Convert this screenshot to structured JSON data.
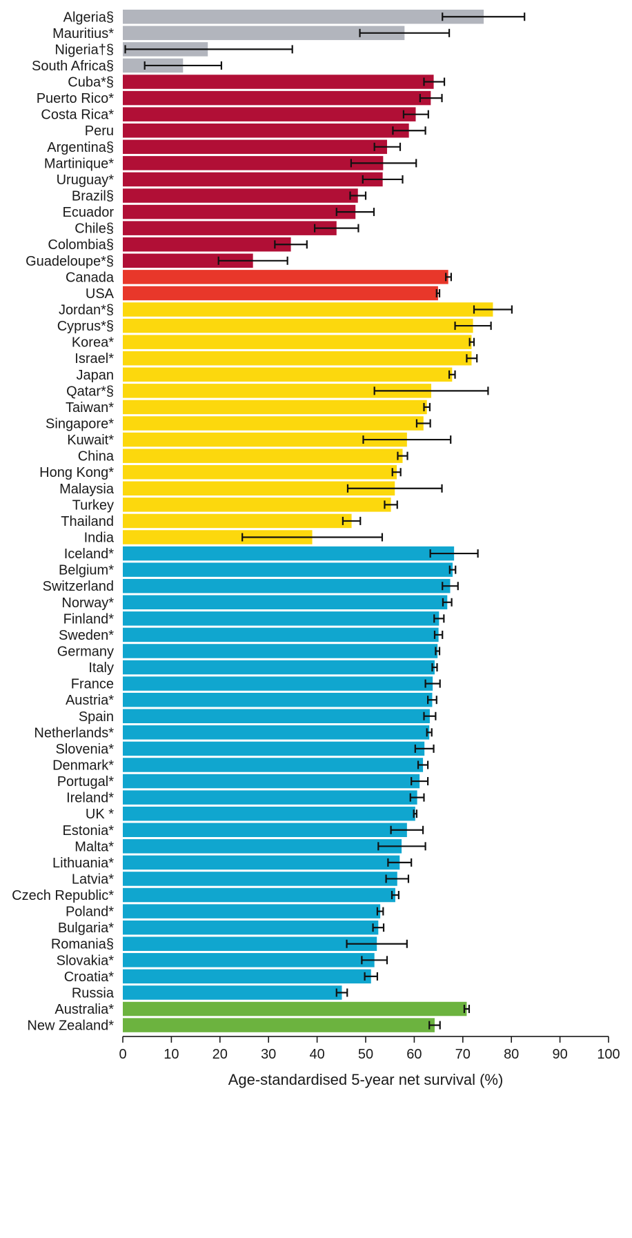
{
  "chart_data": {
    "type": "bar",
    "orientation": "horizontal",
    "xlabel": "Age-standardised 5-year net survival (%)",
    "xlim": [
      0,
      100
    ],
    "xticks": [
      0,
      10,
      20,
      30,
      40,
      50,
      60,
      70,
      80,
      90,
      100
    ],
    "grid": false,
    "legend": "none",
    "colors": {
      "africa": "#b2b5bd",
      "central_south_america": "#b10f36",
      "north_america": "#e8372a",
      "asia": "#fcd80d",
      "europe": "#10a6cf",
      "oceania": "#6cb33f"
    },
    "bars": [
      {
        "label": "Algeria§",
        "value": 74.3,
        "ci": [
          65.8,
          82.7
        ],
        "group": "africa"
      },
      {
        "label": "Mauritius*",
        "value": 58.0,
        "ci": [
          48.8,
          67.2
        ],
        "group": "africa"
      },
      {
        "label": "Nigeria†§",
        "value": 17.5,
        "ci": [
          0.5,
          34.9
        ],
        "group": "africa"
      },
      {
        "label": "South Africa§",
        "value": 12.4,
        "ci": [
          4.5,
          20.3
        ],
        "group": "africa"
      },
      {
        "label": "Cuba*§",
        "value": 64.0,
        "ci": [
          62.0,
          66.2
        ],
        "group": "central_south_america"
      },
      {
        "label": "Puerto Rico*",
        "value": 63.4,
        "ci": [
          61.2,
          65.7
        ],
        "group": "central_south_america"
      },
      {
        "label": "Costa Rica*",
        "value": 60.3,
        "ci": [
          57.8,
          62.9
        ],
        "group": "central_south_america"
      },
      {
        "label": "Peru",
        "value": 58.9,
        "ci": [
          55.6,
          62.3
        ],
        "group": "central_south_america"
      },
      {
        "label": "Argentina§",
        "value": 54.4,
        "ci": [
          51.8,
          57.1
        ],
        "group": "central_south_america"
      },
      {
        "label": "Martinique*",
        "value": 53.6,
        "ci": [
          47.0,
          60.4
        ],
        "group": "central_south_america"
      },
      {
        "label": "Uruguay*",
        "value": 53.5,
        "ci": [
          49.4,
          57.6
        ],
        "group": "central_south_america"
      },
      {
        "label": "Brazil§",
        "value": 48.4,
        "ci": [
          46.8,
          50.0
        ],
        "group": "central_south_america"
      },
      {
        "label": "Ecuador",
        "value": 47.9,
        "ci": [
          44.0,
          51.7
        ],
        "group": "central_south_america"
      },
      {
        "label": "Chile§",
        "value": 44.0,
        "ci": [
          39.5,
          48.5
        ],
        "group": "central_south_america"
      },
      {
        "label": "Colombia§",
        "value": 34.6,
        "ci": [
          31.3,
          37.9
        ],
        "group": "central_south_america"
      },
      {
        "label": "Guadeloupe*§",
        "value": 26.8,
        "ci": [
          19.7,
          33.9
        ],
        "group": "central_south_america"
      },
      {
        "label": "Canada",
        "value": 67.0,
        "ci": [
          66.5,
          67.6
        ],
        "group": "north_america"
      },
      {
        "label": "USA",
        "value": 64.9,
        "ci": [
          64.6,
          65.2
        ],
        "group": "north_america"
      },
      {
        "label": "Jordan*§",
        "value": 76.2,
        "ci": [
          72.3,
          80.1
        ],
        "group": "asia"
      },
      {
        "label": "Cyprus*§",
        "value": 72.1,
        "ci": [
          68.4,
          75.8
        ],
        "group": "asia"
      },
      {
        "label": "Korea*",
        "value": 71.8,
        "ci": [
          71.4,
          72.3
        ],
        "group": "asia"
      },
      {
        "label": "Israel*",
        "value": 71.8,
        "ci": [
          70.8,
          72.9
        ],
        "group": "asia"
      },
      {
        "label": "Japan",
        "value": 67.8,
        "ci": [
          67.2,
          68.4
        ],
        "group": "asia"
      },
      {
        "label": "Qatar*§",
        "value": 63.5,
        "ci": [
          51.8,
          75.2
        ],
        "group": "asia"
      },
      {
        "label": "Taiwan*",
        "value": 62.6,
        "ci": [
          62.0,
          63.2
        ],
        "group": "asia"
      },
      {
        "label": "Singapore*",
        "value": 61.9,
        "ci": [
          60.5,
          63.3
        ],
        "group": "asia"
      },
      {
        "label": "Kuwait*",
        "value": 58.5,
        "ci": [
          49.5,
          67.5
        ],
        "group": "asia"
      },
      {
        "label": "China",
        "value": 57.6,
        "ci": [
          56.6,
          58.6
        ],
        "group": "asia"
      },
      {
        "label": "Hong Kong*",
        "value": 56.4,
        "ci": [
          55.5,
          57.2
        ],
        "group": "asia"
      },
      {
        "label": "Malaysia",
        "value": 56.0,
        "ci": [
          46.3,
          65.7
        ],
        "group": "asia"
      },
      {
        "label": "Turkey",
        "value": 55.2,
        "ci": [
          53.9,
          56.5
        ],
        "group": "asia"
      },
      {
        "label": "Thailand",
        "value": 47.1,
        "ci": [
          45.3,
          48.9
        ],
        "group": "asia"
      },
      {
        "label": "India",
        "value": 39.0,
        "ci": [
          24.6,
          53.4
        ],
        "group": "asia"
      },
      {
        "label": "Iceland*",
        "value": 68.2,
        "ci": [
          63.3,
          73.1
        ],
        "group": "europe"
      },
      {
        "label": "Belgium*",
        "value": 67.9,
        "ci": [
          67.3,
          68.5
        ],
        "group": "europe"
      },
      {
        "label": "Switzerland",
        "value": 67.4,
        "ci": [
          65.8,
          69.0
        ],
        "group": "europe"
      },
      {
        "label": "Norway*",
        "value": 66.8,
        "ci": [
          65.9,
          67.7
        ],
        "group": "europe"
      },
      {
        "label": "Finland*",
        "value": 65.1,
        "ci": [
          64.1,
          66.1
        ],
        "group": "europe"
      },
      {
        "label": "Sweden*",
        "value": 65.0,
        "ci": [
          64.2,
          65.8
        ],
        "group": "europe"
      },
      {
        "label": "Germany",
        "value": 64.8,
        "ci": [
          64.4,
          65.2
        ],
        "group": "europe"
      },
      {
        "label": "Italy",
        "value": 64.2,
        "ci": [
          63.7,
          64.7
        ],
        "group": "europe"
      },
      {
        "label": "France",
        "value": 63.8,
        "ci": [
          62.3,
          65.3
        ],
        "group": "europe"
      },
      {
        "label": "Austria*",
        "value": 63.7,
        "ci": [
          62.8,
          64.6
        ],
        "group": "europe"
      },
      {
        "label": "Spain",
        "value": 63.2,
        "ci": [
          62.0,
          64.4
        ],
        "group": "europe"
      },
      {
        "label": "Netherlands*",
        "value": 63.1,
        "ci": [
          62.6,
          63.6
        ],
        "group": "europe"
      },
      {
        "label": "Slovenia*",
        "value": 62.1,
        "ci": [
          60.2,
          64.0
        ],
        "group": "europe"
      },
      {
        "label": "Denmark*",
        "value": 61.8,
        "ci": [
          60.8,
          62.8
        ],
        "group": "europe"
      },
      {
        "label": "Portugal*",
        "value": 61.1,
        "ci": [
          59.4,
          62.8
        ],
        "group": "europe"
      },
      {
        "label": "Ireland*",
        "value": 60.6,
        "ci": [
          59.2,
          62.0
        ],
        "group": "europe"
      },
      {
        "label": "UK *",
        "value": 60.2,
        "ci": [
          59.9,
          60.5
        ],
        "group": "europe"
      },
      {
        "label": "Estonia*",
        "value": 58.5,
        "ci": [
          55.2,
          61.8
        ],
        "group": "europe"
      },
      {
        "label": "Malta*",
        "value": 57.4,
        "ci": [
          52.6,
          62.3
        ],
        "group": "europe"
      },
      {
        "label": "Lithuania*",
        "value": 57.0,
        "ci": [
          54.6,
          59.4
        ],
        "group": "europe"
      },
      {
        "label": "Latvia*",
        "value": 56.5,
        "ci": [
          54.2,
          58.8
        ],
        "group": "europe"
      },
      {
        "label": "Czech Republic*",
        "value": 56.1,
        "ci": [
          55.4,
          56.8
        ],
        "group": "europe"
      },
      {
        "label": "Poland*",
        "value": 53.0,
        "ci": [
          52.4,
          53.6
        ],
        "group": "europe"
      },
      {
        "label": "Bulgaria*",
        "value": 52.6,
        "ci": [
          51.5,
          53.7
        ],
        "group": "europe"
      },
      {
        "label": "Romania§",
        "value": 52.3,
        "ci": [
          46.1,
          58.5
        ],
        "group": "europe"
      },
      {
        "label": "Slovakia*",
        "value": 51.8,
        "ci": [
          49.2,
          54.4
        ],
        "group": "europe"
      },
      {
        "label": "Croatia*",
        "value": 51.1,
        "ci": [
          49.8,
          52.4
        ],
        "group": "europe"
      },
      {
        "label": "Russia",
        "value": 45.1,
        "ci": [
          44.0,
          46.2
        ],
        "group": "europe"
      },
      {
        "label": "Australia*",
        "value": 70.8,
        "ci": [
          70.3,
          71.3
        ],
        "group": "oceania"
      },
      {
        "label": "New Zealand*",
        "value": 64.2,
        "ci": [
          63.1,
          65.3
        ],
        "group": "oceania"
      }
    ]
  }
}
